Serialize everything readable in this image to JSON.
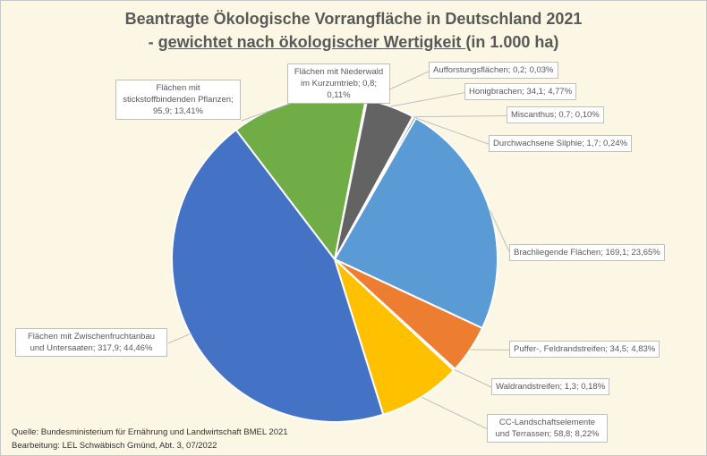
{
  "title_line1": "Beantragte Ökologische  Vorrangfläche  in Deutschland  2021",
  "title_line2_prefix": "- ",
  "title_line2_underlined": "gewichtet nach ökologischer  Wertigkeit ",
  "title_line2_suffix": " (in 1.000 ha)",
  "source": "Quelle: Bundesministerium für Ernährung und Landwirtschaft BMEL 2021",
  "editor": "Bearbeitung: LEL Schwäbisch Gmünd, Abt. 3, 07/2022",
  "chart_data": {
    "type": "pie",
    "title": "Beantragte Ökologische Vorrangfläche in Deutschland 2021 - gewichtet nach ökologischer Wertigkeit (in 1.000 ha)",
    "slices": [
      {
        "name": "Flächen mit Niederwald im Kurzumtrieb",
        "value": 0.8,
        "percent": 0.11,
        "label": "Flächen mit Niederwald im Kurzumtrieb; 0,8; 0,11%",
        "color": "#264478"
      },
      {
        "name": "Aufforstungsflächen",
        "value": 0.2,
        "percent": 0.03,
        "label": "Aufforstungsflächen; 0,2; 0,03%",
        "color": "#9E480E"
      },
      {
        "name": "Honigbrachen",
        "value": 34.1,
        "percent": 4.77,
        "label": "Honigbrachen; 34,1; 4,77%",
        "color": "#636363"
      },
      {
        "name": "Miscanthus",
        "value": 0.7,
        "percent": 0.1,
        "label": "Miscanthus; 0,7; 0,10%",
        "color": "#997300"
      },
      {
        "name": "Durchwachsene Silphie",
        "value": 1.7,
        "percent": 0.24,
        "label": "Durchwachsene Silphie; 1,7; 0,24%",
        "color": "#255E91"
      },
      {
        "name": "Brachliegende Flächen",
        "value": 169.1,
        "percent": 23.65,
        "label": "Brachliegende Flächen; 169,1; 23,65%",
        "color": "#5B9BD5"
      },
      {
        "name": "Puffer-, Feldrandstreifen",
        "value": 34.5,
        "percent": 4.83,
        "label": "Puffer-, Feldrandstreifen; 34,5; 4,83%",
        "color": "#ED7D31"
      },
      {
        "name": "Waldrandstreifen",
        "value": 1.3,
        "percent": 0.18,
        "label": "Waldrandstreifen; 1,3; 0,18%",
        "color": "#A5A5A5"
      },
      {
        "name": "CC-Landschaftselemente und Terrassen",
        "value": 58.8,
        "percent": 8.22,
        "label": "CC-Landschaftselemente und Terrassen; 58,8; 8,22%",
        "color": "#FFC000"
      },
      {
        "name": "Flächen mit Zwischenfruchtanbau und Untersaaten",
        "value": 317.9,
        "percent": 44.46,
        "label": "Flächen mit Zwischenfruchtanbau und Untersaaten; 317,9; 44,46%",
        "color": "#4472C4"
      },
      {
        "name": "Flächen mit stickstoffbindenden Pflanzen",
        "value": 95.9,
        "percent": 13.41,
        "label": "Flächen mit stickstoffbindenden Pflanzen; 95,9; 13,41%",
        "color": "#70AD47"
      }
    ],
    "legend": "none"
  }
}
